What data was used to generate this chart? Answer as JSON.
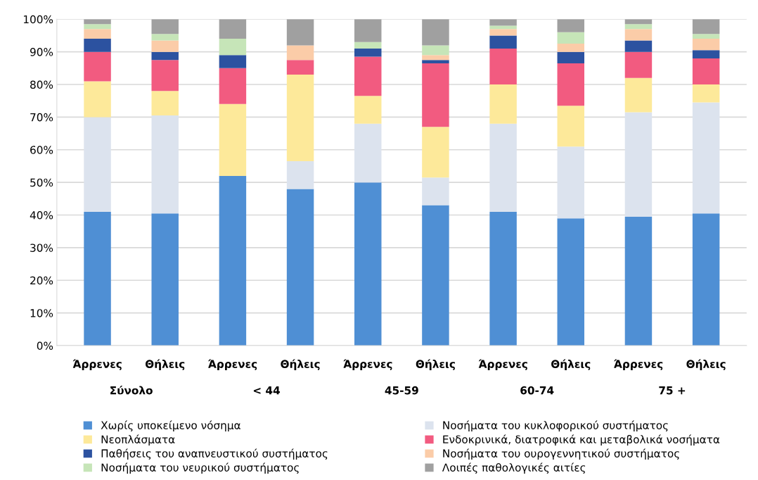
{
  "chart_data": {
    "type": "bar",
    "stacked": true,
    "categories": [
      "Άρρενες",
      "Θήλεις",
      "Άρρενες",
      "Θήλεις",
      "Άρρενες",
      "Θήλεις",
      "Άρρενες",
      "Θήλεις",
      "Άρρενες",
      "Θήλεις"
    ],
    "annotations": [
      "Σύνολο",
      "< 44",
      "45-59",
      "60-74",
      "75 +"
    ],
    "series": [
      {
        "name": "Χωρίς υποκείμενο νόσημα",
        "color": "#4f8fd4",
        "values": [
          41,
          40.5,
          52,
          48,
          50,
          43,
          41,
          39,
          39.5,
          40.5
        ]
      },
      {
        "name": "Νοσήματα του κυκλοφορικού συστήματος",
        "color": "#dce3ee",
        "values": [
          29,
          30,
          0,
          8.5,
          18,
          8.5,
          27,
          22,
          32,
          34
        ]
      },
      {
        "name": "Νεοπλάσματα",
        "color": "#fde99a",
        "values": [
          11,
          7.5,
          22,
          26.5,
          8.5,
          15.5,
          12,
          12.5,
          10.5,
          5.5
        ]
      },
      {
        "name": "Ενδοκρινικά, διατροφικά και μεταβολικά νοσήματα",
        "color": "#f25b80",
        "values": [
          9,
          9.5,
          11,
          4.5,
          12,
          19.5,
          11,
          13,
          8,
          8
        ]
      },
      {
        "name": "Παθήσεις του αναπνευστικού συστήματος",
        "color": "#2c52a0",
        "values": [
          4,
          2.5,
          4,
          0,
          2.5,
          1,
          4,
          3.5,
          3.5,
          2.5
        ]
      },
      {
        "name": "Νοσήματα του ουρογεννητικού συστήματος",
        "color": "#fbcca8",
        "values": [
          3,
          3.5,
          0,
          4.5,
          0,
          1.5,
          2,
          2.5,
          3.5,
          3.5
        ]
      },
      {
        "name": "Νοσήματα του νευρικού συστήματος",
        "color": "#c6e5b8",
        "values": [
          1.5,
          2,
          5,
          0,
          2,
          3,
          1,
          3.5,
          1.5,
          1.5
        ]
      },
      {
        "name": "Λοιπές παθολογικές αιτίες",
        "color": "#a0a0a0",
        "values": [
          1.5,
          4.5,
          6,
          8,
          7,
          8,
          2,
          4,
          1.5,
          4.5
        ]
      }
    ],
    "ylim": [
      0,
      100
    ],
    "yticks": [
      {
        "value": 0,
        "label": "0%"
      },
      {
        "value": 10,
        "label": "10%"
      },
      {
        "value": 20,
        "label": "20%"
      },
      {
        "value": 30,
        "label": "30%"
      },
      {
        "value": 40,
        "label": "40%"
      },
      {
        "value": 50,
        "label": "50%"
      },
      {
        "value": 60,
        "label": "60%"
      },
      {
        "value": 70,
        "label": "70%"
      },
      {
        "value": 80,
        "label": "80%"
      },
      {
        "value": 90,
        "label": "90%"
      },
      {
        "value": 100,
        "label": "100%"
      }
    ],
    "grid": "y",
    "legend": "bottom"
  }
}
